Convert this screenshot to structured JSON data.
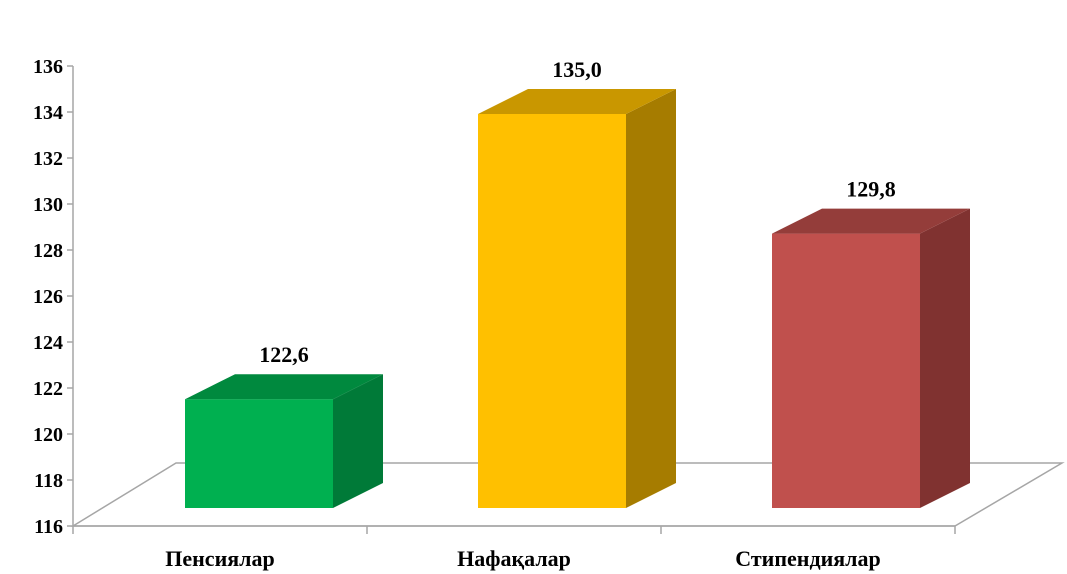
{
  "chart_data": {
    "type": "bar",
    "style": "3d-column",
    "title": "",
    "xlabel": "",
    "ylabel": "",
    "categories": [
      "Пенсиялар",
      "Нафақалар",
      "Стипендиялар"
    ],
    "values": [
      122.6,
      135.0,
      129.8
    ],
    "data_labels": [
      "122,6",
      "135,0",
      "129,8"
    ],
    "ylim": [
      116,
      136
    ],
    "y_ticks": [
      "116",
      "118",
      "120",
      "122",
      "124",
      "126",
      "128",
      "130",
      "132",
      "134",
      "136"
    ],
    "grid": false,
    "legend": "none",
    "colors": [
      {
        "front": "#00b050",
        "side": "#007a38",
        "top": "#00893e"
      },
      {
        "front": "#ffc000",
        "side": "#a67c00",
        "top": "#c99700"
      },
      {
        "front": "#c0504d",
        "side": "#803230",
        "top": "#943d3a"
      }
    ],
    "axis_color": "#a6a6a6"
  }
}
